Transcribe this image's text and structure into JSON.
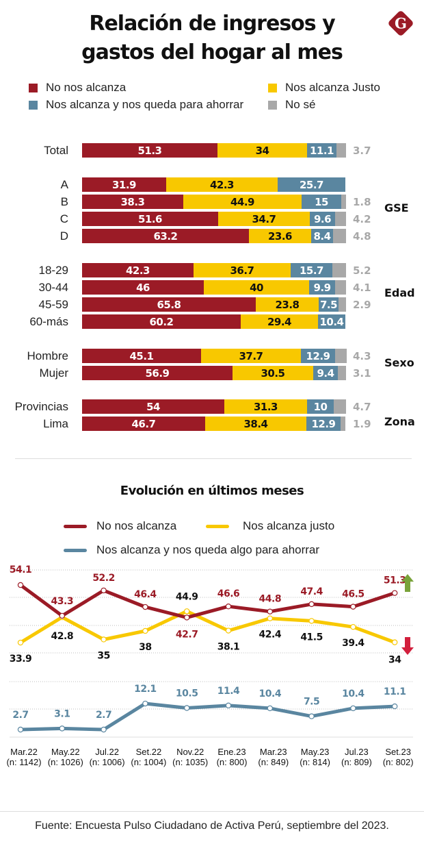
{
  "title_line1": "Relación de ingresos y",
  "title_line2": "gastos del hogar al mes",
  "logo_letter": "G",
  "colors": {
    "no_alcanza": "#9b1b26",
    "alcanza_justo": "#f8c800",
    "ahorrar": "#5a86a0",
    "no_se": "#a8a8a8",
    "up_arrow": "#79a33a",
    "down_arrow": "#d21f3c"
  },
  "legend": {
    "no_alcanza": "No nos alcanza",
    "alcanza_justo": "Nos alcanza Justo",
    "ahorrar": "Nos alcanza y nos queda para ahorrar",
    "no_se": "No sé"
  },
  "groups": {
    "gse": "GSE",
    "edad": "Edad",
    "sexo": "Sexo",
    "zona": "Zona"
  },
  "line_section": {
    "title": "Evolución en últimos meses",
    "legend": {
      "no_alcanza": "No nos alcanza",
      "alcanza_justo": "Nos alcanza justo",
      "ahorrar": "Nos alcanza y nos queda algo para ahorrar"
    },
    "trend_up_icon": "up-arrow-icon",
    "trend_down_icon": "down-arrow-icon"
  },
  "source": "Fuente: Encuesta Pulso Ciudadano de Activa Perú, septiembre del 2023.",
  "chart_data": [
    {
      "type": "bar",
      "orientation": "horizontal",
      "stacked": true,
      "title": "Relación de ingresos y gastos del hogar al mes",
      "unit": "%",
      "categories": [
        "Total",
        "A",
        "B",
        "C",
        "D",
        "18-29",
        "30-44",
        "45-59",
        "60-más",
        "Hombre",
        "Mujer",
        "Provincias",
        "Lima"
      ],
      "category_groups": [
        "",
        "GSE",
        "GSE",
        "GSE",
        "GSE",
        "Edad",
        "Edad",
        "Edad",
        "Edad",
        "Sexo",
        "Sexo",
        "Zona",
        "Zona"
      ],
      "series": [
        {
          "name": "No nos alcanza",
          "values": [
            51.3,
            31.9,
            38.3,
            51.6,
            63.2,
            42.3,
            46,
            65.8,
            60.2,
            45.1,
            56.9,
            54,
            46.7
          ]
        },
        {
          "name": "Nos alcanza Justo",
          "values": [
            34,
            42.3,
            44.9,
            34.7,
            23.6,
            36.7,
            40,
            23.8,
            29.4,
            37.7,
            30.5,
            31.3,
            38.4
          ]
        },
        {
          "name": "Nos alcanza y nos queda para ahorrar",
          "values": [
            11.1,
            25.7,
            15,
            9.6,
            8.4,
            15.7,
            9.9,
            7.5,
            10.4,
            12.9,
            9.4,
            10,
            12.9
          ]
        },
        {
          "name": "No sé",
          "values": [
            3.7,
            null,
            1.8,
            4.2,
            4.8,
            5.2,
            4.1,
            2.9,
            null,
            4.3,
            3.1,
            4.7,
            1.9
          ]
        }
      ],
      "legend_position": "top"
    },
    {
      "type": "line",
      "title": "Evolución en últimos meses",
      "unit": "%",
      "x": [
        "Mar.22",
        "May.22",
        "Jul.22",
        "Set.22",
        "Nov.22",
        "Ene.23",
        "Mar.23",
        "May.23",
        "Jul.23",
        "Set.23"
      ],
      "x_sample": [
        "(n: 1142)",
        "(n: 1026)",
        "(n: 1006)",
        "(n: 1004)",
        "(n: 1035)",
        "(n: 800)",
        "(n: 849)",
        "(n: 814)",
        "(n: 809)",
        "(n: 802)"
      ],
      "series": [
        {
          "name": "No nos alcanza",
          "values": [
            54.1,
            43.3,
            52.2,
            46.4,
            42.7,
            46.6,
            44.8,
            47.4,
            46.5,
            51.3
          ]
        },
        {
          "name": "Nos alcanza justo",
          "values": [
            33.9,
            42.8,
            35,
            38,
            44.9,
            38.1,
            42.4,
            41.5,
            39.4,
            34
          ]
        },
        {
          "name": "Nos alcanza y nos queda algo para ahorrar",
          "values": [
            2.7,
            3.1,
            2.7,
            12.1,
            10.5,
            11.4,
            10.4,
            7.5,
            10.4,
            11.1
          ]
        }
      ],
      "grid": true,
      "legend_position": "top"
    }
  ]
}
